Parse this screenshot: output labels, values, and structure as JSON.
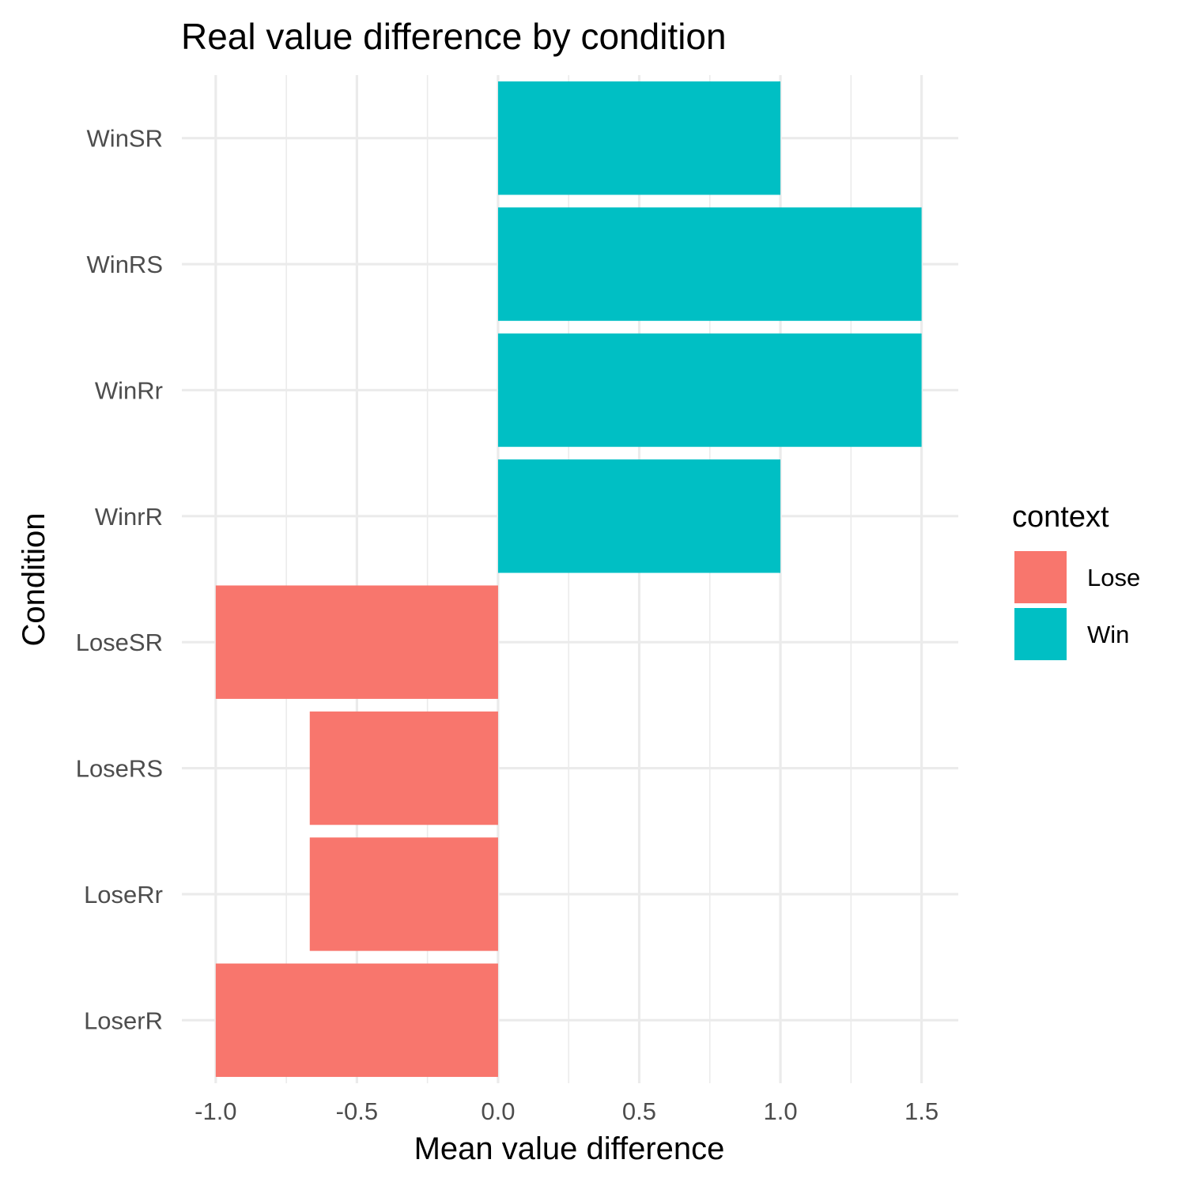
{
  "chart_data": {
    "type": "bar",
    "orientation": "horizontal",
    "title": "Real value difference by condition",
    "xlabel": "Mean value difference",
    "ylabel": "Condition",
    "categories": [
      "WinSR",
      "WinRS",
      "WinRr",
      "WinrR",
      "LoseSR",
      "LoseRS",
      "LoseRr",
      "LoserR"
    ],
    "values": [
      1.0,
      1.5,
      1.5,
      1.0,
      -1.0,
      -0.667,
      -0.667,
      -1.0
    ],
    "groups": [
      "Win",
      "Win",
      "Win",
      "Win",
      "Lose",
      "Lose",
      "Lose",
      "Lose"
    ],
    "xlim": [
      -1.12,
      1.63
    ],
    "xticks": [
      -1.0,
      -0.5,
      0.0,
      0.5,
      1.0,
      1.5
    ],
    "xtick_labels": [
      "-1.0",
      "-0.5",
      "0.0",
      "0.5",
      "1.0",
      "1.5"
    ],
    "grid": true,
    "legend": {
      "title": "context",
      "position": "right",
      "items": [
        {
          "label": "Lose",
          "color": "#F8766D"
        },
        {
          "label": "Win",
          "color": "#00BFC4"
        }
      ]
    }
  }
}
